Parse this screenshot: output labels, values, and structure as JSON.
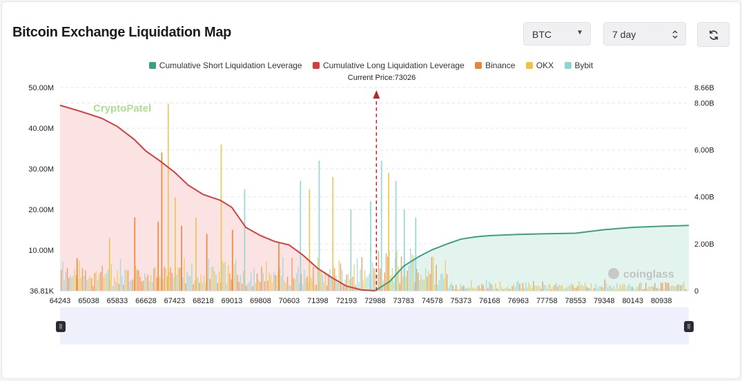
{
  "header": {
    "title": "Bitcoin Exchange Liquidation Map",
    "asset_select": "BTC",
    "period_select": "7 day"
  },
  "colors": {
    "short": "#3a9f85",
    "long": "#d43d3f",
    "binance": "#e8853a",
    "okx": "#e7c44a",
    "bybit": "#8fd4d4",
    "long_fill": "#fbe3e3",
    "short_fill": "#e3f4ef",
    "slider_bg": "#eef0fb"
  },
  "chart_data": {
    "type": "bar+line",
    "title": "Bitcoin Exchange Liquidation Map",
    "current_price_label": "Current Price:73026",
    "current_price": 73026,
    "legend": [
      {
        "key": "short",
        "label": "Cumulative Short Liquidation Leverage"
      },
      {
        "key": "long",
        "label": "Cumulative Long Liquidation Leverage"
      },
      {
        "key": "binance",
        "label": "Binance"
      },
      {
        "key": "okx",
        "label": "OKX"
      },
      {
        "key": "bybit",
        "label": "Bybit"
      }
    ],
    "x_ticks": [
      "64243",
      "65038",
      "65833",
      "66628",
      "67423",
      "68218",
      "69013",
      "69808",
      "70603",
      "71398",
      "72193",
      "72988",
      "73783",
      "74578",
      "75373",
      "76168",
      "76963",
      "77758",
      "78553",
      "79348",
      "80143",
      "80938"
    ],
    "xlim": [
      64243,
      81700
    ],
    "y_left_ticks": [
      "50.00M",
      "40.00M",
      "30.00M",
      "20.00M",
      "10.00M",
      "36.81K"
    ],
    "y_left_range": [
      0,
      50
    ],
    "y_left_unit": "M",
    "y_right_ticks": [
      "8.66B",
      "8.00B",
      "6.00B",
      "4.00B",
      "2.00B",
      "0"
    ],
    "y_right_range": [
      0,
      8.66
    ],
    "y_right_unit": "B",
    "long_cumulative": {
      "x": [
        64243,
        64800,
        65400,
        65833,
        66300,
        66628,
        67000,
        67423,
        67800,
        68218,
        68700,
        69013,
        69400,
        69808,
        70200,
        70603,
        71000,
        71398,
        71800,
        72193,
        72600,
        72988
      ],
      "y": [
        7.9,
        7.65,
        7.35,
        7.0,
        6.45,
        5.95,
        5.55,
        5.05,
        4.5,
        4.1,
        3.85,
        3.55,
        2.7,
        2.35,
        2.1,
        1.95,
        1.5,
        0.95,
        0.55,
        0.2,
        0.04,
        0.0
      ]
    },
    "short_cumulative": {
      "x": [
        72988,
        73400,
        73783,
        74200,
        74578,
        75000,
        75373,
        75800,
        76168,
        76963,
        77758,
        78553,
        79348,
        80143,
        80938,
        81700
      ],
      "y": [
        0.0,
        0.4,
        1.05,
        1.45,
        1.75,
        2.0,
        2.2,
        2.3,
        2.35,
        2.4,
        2.43,
        2.45,
        2.6,
        2.7,
        2.75,
        2.78
      ]
    },
    "peaks": [
      {
        "x": 64700,
        "exchange": "binance",
        "value": 8
      },
      {
        "x": 65600,
        "exchange": "okx",
        "value": 13
      },
      {
        "x": 66300,
        "exchange": "binance",
        "value": 18
      },
      {
        "x": 66950,
        "exchange": "binance",
        "value": 17
      },
      {
        "x": 67050,
        "exchange": "binance",
        "value": 34
      },
      {
        "x": 67230,
        "exchange": "okx",
        "value": 46
      },
      {
        "x": 67423,
        "exchange": "okx",
        "value": 23
      },
      {
        "x": 67600,
        "exchange": "binance",
        "value": 16
      },
      {
        "x": 68000,
        "exchange": "okx",
        "value": 18
      },
      {
        "x": 68300,
        "exchange": "binance",
        "value": 14
      },
      {
        "x": 68700,
        "exchange": "okx",
        "value": 36
      },
      {
        "x": 69013,
        "exchange": "binance",
        "value": 15
      },
      {
        "x": 69350,
        "exchange": "bybit",
        "value": 25
      },
      {
        "x": 70300,
        "exchange": "binance",
        "value": 12
      },
      {
        "x": 70900,
        "exchange": "bybit",
        "value": 27
      },
      {
        "x": 71150,
        "exchange": "okx",
        "value": 25
      },
      {
        "x": 71420,
        "exchange": "bybit",
        "value": 32
      },
      {
        "x": 71800,
        "exchange": "okx",
        "value": 28
      },
      {
        "x": 72300,
        "exchange": "bybit",
        "value": 20
      },
      {
        "x": 72850,
        "exchange": "bybit",
        "value": 22
      },
      {
        "x": 73150,
        "exchange": "bybit",
        "value": 32
      },
      {
        "x": 73350,
        "exchange": "okx",
        "value": 29
      },
      {
        "x": 73550,
        "exchange": "bybit",
        "value": 27
      },
      {
        "x": 73783,
        "exchange": "bybit",
        "value": 20
      },
      {
        "x": 74100,
        "exchange": "bybit",
        "value": 18
      }
    ]
  },
  "watermarks": {
    "left": "CryptoPatel",
    "right": "coinglass"
  }
}
